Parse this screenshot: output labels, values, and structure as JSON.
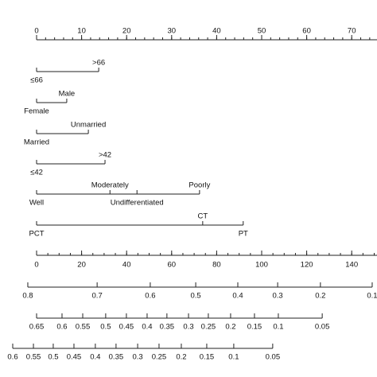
{
  "chart_data": {
    "type": "nomogram",
    "points": {
      "xlim": [
        0,
        75
      ],
      "xticks": [
        0,
        10,
        20,
        30,
        40,
        50,
        60,
        70
      ],
      "minor_step": 2
    },
    "variables": [
      {
        "levels": [
          {
            "label": "≤66",
            "points": 0
          },
          {
            "label": ">66",
            "points": 13.8
          }
        ]
      },
      {
        "levels": [
          {
            "label": "Female",
            "points": 0
          },
          {
            "label": "Male",
            "points": 6.7
          }
        ]
      },
      {
        "levels": [
          {
            "label": "Married",
            "points": 0
          },
          {
            "label": "Unmarried",
            "points": 11.5
          }
        ]
      },
      {
        "levels": [
          {
            "label": "≤42",
            "points": 0
          },
          {
            "label": ">42",
            "points": 15.2
          }
        ]
      },
      {
        "levels": [
          {
            "label": "Well",
            "points": 0
          },
          {
            "label": "Moderately",
            "points": 16.3
          },
          {
            "label": "Undifferentiated",
            "points": 22.3
          },
          {
            "label": "Poorly",
            "points": 36.2
          }
        ]
      },
      {
        "levels": [
          {
            "label": "PCT",
            "points": 0
          },
          {
            "label": "CT",
            "points": 36.9
          },
          {
            "label": "PT",
            "points": 45.9
          }
        ]
      }
    ],
    "total_points": {
      "xlim": [
        0,
        150
      ],
      "xticks": [
        0,
        20,
        40,
        60,
        80,
        100,
        120,
        140
      ],
      "minor_step": 5
    },
    "probability_scales": [
      {
        "ticks": [
          0.8,
          0.7,
          0.6,
          0.5,
          0.4,
          0.3,
          0.2,
          0.1
        ],
        "at_total_points": [
          -3.9,
          26.9,
          50.5,
          70.7,
          89.4,
          107.1,
          126.1,
          149.1
        ]
      },
      {
        "ticks": [
          0.65,
          0.6,
          0.55,
          0.5,
          0.45,
          0.4,
          0.35,
          0.3,
          0.25,
          0.2,
          0.15,
          0.1,
          0.05
        ],
        "at_total_points": [
          0,
          11.3,
          20.5,
          30.7,
          39.9,
          49.1,
          57.9,
          67.5,
          76.3,
          86.2,
          96.8,
          107.4,
          126.9
        ]
      },
      {
        "ticks": [
          0.6,
          0.55,
          0.5,
          0.45,
          0.4,
          0.35,
          0.3,
          0.25,
          0.2,
          0.15,
          0.1,
          0.05
        ],
        "at_total_points": [
          -10.6,
          -1.4,
          7.4,
          16.6,
          26.1,
          35.3,
          44.9,
          54.4,
          64.3,
          75.6,
          87.6,
          104.9
        ]
      }
    ]
  }
}
